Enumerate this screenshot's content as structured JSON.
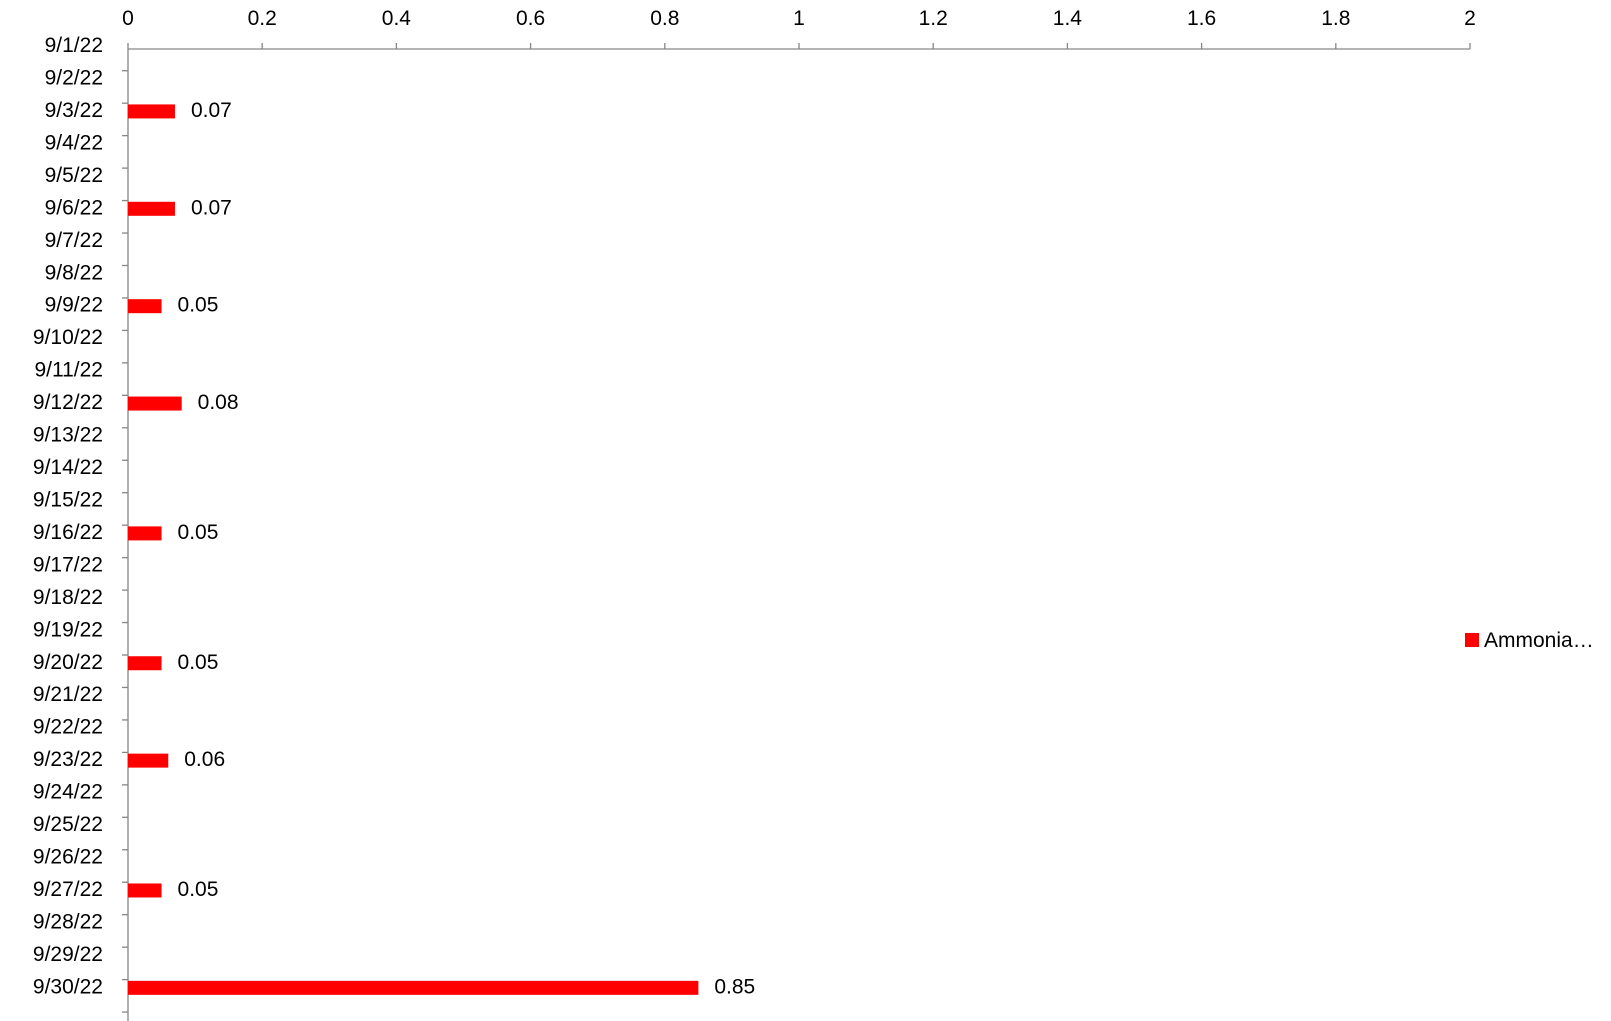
{
  "chart_data": {
    "type": "bar",
    "orientation": "horizontal",
    "x_axis_position": "top",
    "xlim": [
      0,
      2
    ],
    "x_ticks": [
      0,
      0.2,
      0.4,
      0.6,
      0.8,
      1,
      1.2,
      1.4,
      1.6,
      1.8,
      2
    ],
    "x_tick_labels": [
      "0",
      "0.2",
      "0.4",
      "0.6",
      "0.8",
      "1",
      "1.2",
      "1.4",
      "1.6",
      "1.8",
      "2"
    ],
    "grid": false,
    "legend_position": "right",
    "categories": [
      "9/1/22",
      "9/2/22",
      "9/3/22",
      "9/4/22",
      "9/5/22",
      "9/6/22",
      "9/7/22",
      "9/8/22",
      "9/9/22",
      "9/10/22",
      "9/11/22",
      "9/12/22",
      "9/13/22",
      "9/14/22",
      "9/15/22",
      "9/16/22",
      "9/17/22",
      "9/18/22",
      "9/19/22",
      "9/20/22",
      "9/21/22",
      "9/22/22",
      "9/23/22",
      "9/24/22",
      "9/25/22",
      "9/26/22",
      "9/27/22",
      "9/28/22",
      "9/29/22",
      "9/30/22"
    ],
    "series": [
      {
        "name": "Ammonia…",
        "color": "#ff0000",
        "values": [
          null,
          null,
          0.07,
          null,
          null,
          0.07,
          null,
          null,
          0.05,
          null,
          null,
          0.08,
          null,
          null,
          null,
          0.05,
          null,
          null,
          null,
          0.05,
          null,
          null,
          0.06,
          null,
          null,
          null,
          0.05,
          null,
          null,
          0.85
        ],
        "data_labels": [
          null,
          null,
          "0.07",
          null,
          null,
          "0.07",
          null,
          null,
          "0.05",
          null,
          null,
          "0.08",
          null,
          null,
          null,
          "0.05",
          null,
          null,
          null,
          "0.05",
          null,
          null,
          "0.06",
          null,
          null,
          null,
          "0.05",
          null,
          null,
          "0.85"
        ]
      }
    ]
  }
}
